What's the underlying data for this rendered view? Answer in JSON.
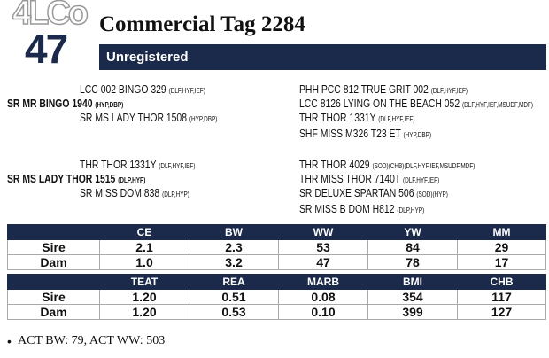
{
  "header": {
    "logo": "4LCo",
    "number": "47",
    "title": "Commercial Tag 2284",
    "status": "Unregistered"
  },
  "pedigree": {
    "blocks": [
      {
        "left": [
          {
            "name": "LCC 002 BINGO 329",
            "tags": "(DLF,HYF,IEF)"
          },
          {
            "name": "SR MR BINGO 1940",
            "tags": "(HYP,DBP)"
          },
          {
            "name": "SR MS LADY THOR 1508",
            "tags": "(HYP,DBP)"
          }
        ],
        "right": [
          {
            "name": "PHH PCC 812 TRUE GRIT 002",
            "tags": "(DLF,HYF,IEF)"
          },
          {
            "name": "LCC 8126 LYING ON THE BEACH 052",
            "tags": "(DLF,HYF,IEF,MSUDF,MDF)"
          },
          {
            "name": "THR THOR 1331Y",
            "tags": "(DLF,HYF,IEF)"
          },
          {
            "name": "SHF MISS M326 T23 ET",
            "tags": "(HYP,DBP)"
          }
        ]
      },
      {
        "left": [
          {
            "name": "THR THOR 1331Y",
            "tags": "(DLF,HYF,IEF)"
          },
          {
            "name": "SR MS LADY THOR 1515",
            "tags": "(DLP,HYP)"
          },
          {
            "name": "SR MISS DOM 838",
            "tags": "(DLP,HYP)"
          }
        ],
        "right": [
          {
            "name": "THR THOR 4029",
            "tags": "(SOD)(CHB)(DLF,HYF,IEF,MSUDF,MDF)"
          },
          {
            "name": "THR MISS THOR 7140T",
            "tags": "(DLF,HYF,IEF)"
          },
          {
            "name": "SR DELUXE SPARTAN 506",
            "tags": "(SOD)(HYP)"
          },
          {
            "name": "SR MISS B DOM H812",
            "tags": "(DLP,HYP)"
          }
        ]
      }
    ]
  },
  "table": {
    "sections": [
      {
        "headers": [
          "CE",
          "BW",
          "WW",
          "YW",
          "MM"
        ],
        "rows": [
          {
            "label": "Sire",
            "values": [
              "2.1",
              "2.3",
              "53",
              "84",
              "29"
            ]
          },
          {
            "label": "Dam",
            "values": [
              "1.0",
              "3.2",
              "47",
              "78",
              "17"
            ]
          }
        ]
      },
      {
        "headers": [
          "TEAT",
          "REA",
          "MARB",
          "BMI",
          "CHB"
        ],
        "rows": [
          {
            "label": "Sire",
            "values": [
              "1.20",
              "0.51",
              "0.08",
              "354",
              "117"
            ]
          },
          {
            "label": "Dam",
            "values": [
              "1.20",
              "0.53",
              "0.10",
              "399",
              "127"
            ]
          }
        ]
      }
    ]
  },
  "footer": {
    "note": "ACT BW: 79, ACT WW: 503"
  }
}
